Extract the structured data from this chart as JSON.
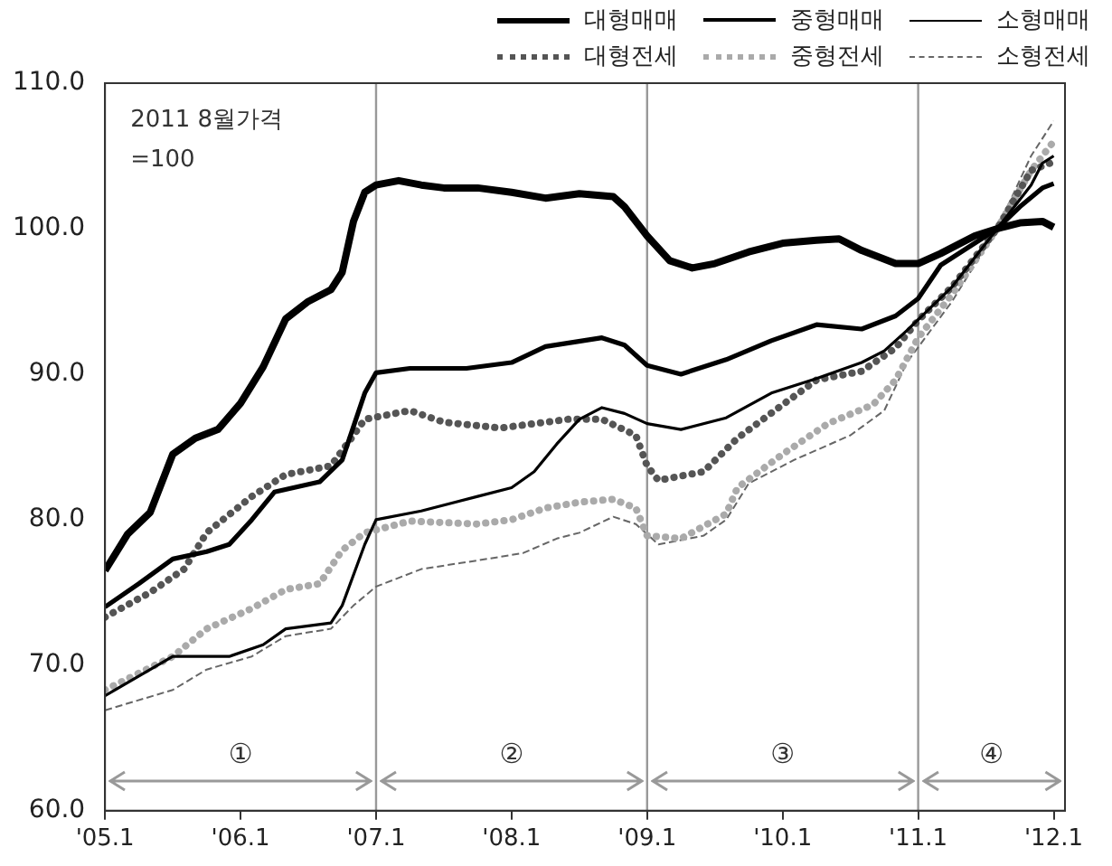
{
  "chart_data": {
    "type": "line",
    "legend": "top right",
    "grid": false,
    "marker": "none",
    "annotations": [
      "2011 8월가격\n=100",
      "①",
      "②",
      "③",
      "④"
    ],
    "xlim": [
      "2005-01",
      "2012-02"
    ],
    "ylim": [
      60,
      110
    ],
    "xticks": [
      {
        "value": "2005-01",
        "label": "'05.1"
      },
      {
        "value": "2006-01",
        "label": "'06.1"
      },
      {
        "value": "2007-01",
        "label": "'07.1"
      },
      {
        "value": "2008-01",
        "label": "'08.1"
      },
      {
        "value": "2009-01",
        "label": "'09.1"
      },
      {
        "value": "2010-01",
        "label": "'10.1"
      },
      {
        "value": "2011-01",
        "label": "'11.1"
      },
      {
        "value": "2012-01",
        "label": "'12.1"
      }
    ],
    "yticks": [
      {
        "value": 60,
        "label": "60.0"
      },
      {
        "value": 70,
        "label": "70.0"
      },
      {
        "value": 80,
        "label": "80.0"
      },
      {
        "value": 90,
        "label": "90.0"
      },
      {
        "value": 100,
        "label": "100.0"
      },
      {
        "value": 110,
        "label": "110.0"
      }
    ],
    "ref_lines": [
      {
        "axis": "x",
        "value": "2007-01",
        "color": "#999999"
      },
      {
        "axis": "x",
        "value": "2009-01",
        "color": "#999999"
      },
      {
        "axis": "x",
        "value": "2011-01",
        "color": "#999999"
      }
    ],
    "series": [
      {
        "name": "대형매매",
        "color": "#000000",
        "line_style": "solid",
        "x": [
          "2005-01",
          "2005-03",
          "2005-05",
          "2005-07",
          "2005-09",
          "2005-11",
          "2006-01",
          "2006-03",
          "2006-05",
          "2006-07",
          "2006-09",
          "2006-10",
          "2006-11",
          "2006-12",
          "2007-01",
          "2007-03",
          "2007-05",
          "2007-07",
          "2007-10",
          "2008-01",
          "2008-04",
          "2008-07",
          "2008-10",
          "2008-11",
          "2009-01",
          "2009-03",
          "2009-05",
          "2009-07",
          "2009-10",
          "2010-01",
          "2010-04",
          "2010-06",
          "2010-08",
          "2010-11",
          "2011-01",
          "2011-03",
          "2011-06",
          "2011-08",
          "2011-10",
          "2011-12",
          "2012-01"
        ],
        "values": [
          76.5,
          79,
          80.5,
          84.5,
          85.6,
          86.2,
          88,
          90.5,
          93.8,
          95,
          95.8,
          97,
          100.5,
          102.5,
          103,
          103.3,
          103,
          102.8,
          102.8,
          102.5,
          102.1,
          102.4,
          102.2,
          101.5,
          99.5,
          97.8,
          97.3,
          97.6,
          98.4,
          99,
          99.2,
          99.3,
          98.5,
          97.6,
          97.6,
          98.3,
          99.5,
          100,
          100.4,
          100.5,
          100.1
        ]
      },
      {
        "name": "중형매매",
        "color": "#000000",
        "line_style": "solid",
        "x": [
          "2005-01",
          "2005-04",
          "2005-07",
          "2005-10",
          "2005-12",
          "2006-02",
          "2006-04",
          "2006-08",
          "2006-10",
          "2006-12",
          "2007-01",
          "2007-04",
          "2007-09",
          "2008-01",
          "2008-04",
          "2008-09",
          "2008-11",
          "2009-01",
          "2009-04",
          "2009-08",
          "2009-12",
          "2010-04",
          "2010-08",
          "2010-11",
          "2011-01",
          "2011-03",
          "2011-08",
          "2011-10",
          "2011-12",
          "2012-01"
        ],
        "values": [
          74,
          75.6,
          77.3,
          77.8,
          78.3,
          80,
          81.9,
          82.6,
          84.1,
          88.7,
          90.1,
          90.4,
          90.4,
          90.8,
          91.9,
          92.5,
          92,
          90.6,
          90,
          91,
          92.3,
          93.4,
          93.1,
          94,
          95.2,
          97.5,
          100,
          101.5,
          102.8,
          103.1
        ]
      },
      {
        "name": "소형매매",
        "color": "#000000",
        "line_style": "solid",
        "x": [
          "2005-01",
          "2005-07",
          "2005-12",
          "2006-03",
          "2006-05",
          "2006-09",
          "2006-10",
          "2006-12",
          "2007-01",
          "2007-05",
          "2007-10",
          "2008-01",
          "2008-03",
          "2008-05",
          "2008-07",
          "2008-09",
          "2008-11",
          "2009-01",
          "2009-04",
          "2009-08",
          "2009-12",
          "2010-04",
          "2010-08",
          "2010-10",
          "2010-12",
          "2011-04",
          "2011-08",
          "2011-11",
          "2011-12",
          "2012-01"
        ],
        "values": [
          67.9,
          70.6,
          70.6,
          71.4,
          72.5,
          72.9,
          74.1,
          78.3,
          80,
          80.6,
          81.6,
          82.2,
          83.3,
          85.2,
          86.9,
          87.7,
          87.3,
          86.6,
          86.2,
          87,
          88.7,
          89.7,
          90.8,
          91.6,
          93,
          96,
          100,
          103,
          104.5,
          105
        ]
      },
      {
        "name": "대형전세",
        "color": "#555555",
        "line_style": "dotted",
        "x": [
          "2005-01",
          "2005-05",
          "2005-08",
          "2005-10",
          "2006-02",
          "2006-05",
          "2006-09",
          "2006-11",
          "2006-12",
          "2007-04",
          "2007-07",
          "2007-12",
          "2008-04",
          "2008-06",
          "2008-09",
          "2008-12",
          "2009-01",
          "2009-02",
          "2009-06",
          "2009-09",
          "2010-01",
          "2010-04",
          "2010-08",
          "2010-11",
          "2011-01",
          "2011-04",
          "2011-08",
          "2011-11",
          "2012-01"
        ],
        "values": [
          73.3,
          75,
          76.6,
          79.1,
          81.6,
          83.1,
          83.7,
          85.8,
          86.9,
          87.5,
          86.7,
          86.3,
          86.7,
          86.9,
          86.9,
          85.8,
          83.7,
          82.7,
          83.3,
          85.6,
          87.9,
          89.6,
          90.2,
          91.8,
          93.7,
          96,
          100,
          104,
          104.6
        ]
      },
      {
        "name": "중형전세",
        "color": "#aaaaaa",
        "line_style": "dotted",
        "x": [
          "2005-01",
          "2005-07",
          "2005-10",
          "2006-02",
          "2006-05",
          "2006-08",
          "2006-10",
          "2006-12",
          "2007-04",
          "2007-10",
          "2008-01",
          "2008-04",
          "2008-07",
          "2008-10",
          "2008-12",
          "2009-01",
          "2009-04",
          "2009-08",
          "2009-09",
          "2010-01",
          "2010-05",
          "2010-09",
          "2010-11",
          "2011-01",
          "2011-04",
          "2011-08",
          "2011-11",
          "2012-01"
        ],
        "values": [
          68.3,
          70.6,
          72.5,
          73.9,
          75.2,
          75.6,
          77.9,
          79.1,
          79.9,
          79.7,
          80,
          80.8,
          81.2,
          81.4,
          80.8,
          78.9,
          78.7,
          80.4,
          82.2,
          84.5,
          86.6,
          87.9,
          89.6,
          92.5,
          95.5,
          100,
          104,
          106
        ]
      },
      {
        "name": "소형전세",
        "color": "#666666",
        "line_style": "dashed",
        "x": [
          "2005-01",
          "2005-07",
          "2005-10",
          "2006-02",
          "2006-05",
          "2006-09",
          "2006-11",
          "2007-01",
          "2007-05",
          "2007-10",
          "2008-02",
          "2008-05",
          "2008-07",
          "2008-10",
          "2008-12",
          "2009-02",
          "2009-06",
          "2009-08",
          "2009-10",
          "2010-02",
          "2010-07",
          "2010-10",
          "2010-12",
          "2011-04",
          "2011-08",
          "2011-11",
          "2012-01"
        ],
        "values": [
          66.9,
          68.3,
          69.7,
          70.6,
          72,
          72.5,
          74.1,
          75.4,
          76.6,
          77.2,
          77.7,
          78.7,
          79.1,
          80.2,
          79.7,
          78.3,
          78.9,
          80,
          82.5,
          84.1,
          85.8,
          87.5,
          90.8,
          95,
          100,
          105,
          107.4
        ]
      }
    ]
  }
}
